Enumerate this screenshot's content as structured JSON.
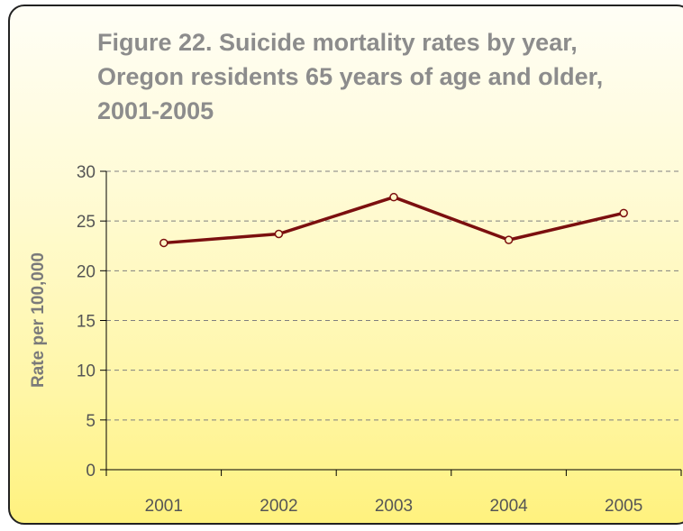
{
  "chart_data": {
    "type": "line",
    "title": "Figure 22. Suicide mortality rates by year, Oregon residents 65 years of age and older, 2001-2005",
    "xlabel": "",
    "ylabel": "Rate per 100,000",
    "categories": [
      "2001",
      "2002",
      "2003",
      "2004",
      "2005"
    ],
    "series": [
      {
        "values": [
          22.8,
          23.7,
          27.4,
          23.1,
          25.8
        ]
      }
    ],
    "ylim": [
      0,
      30
    ],
    "yticks": [
      "0",
      "5",
      "10",
      "15",
      "20",
      "25",
      "30"
    ],
    "grid": true,
    "legend": "none",
    "colors": {
      "line": "#7b0f0f",
      "grid": "#7f7f7f",
      "title": "#8c8c8c"
    }
  }
}
